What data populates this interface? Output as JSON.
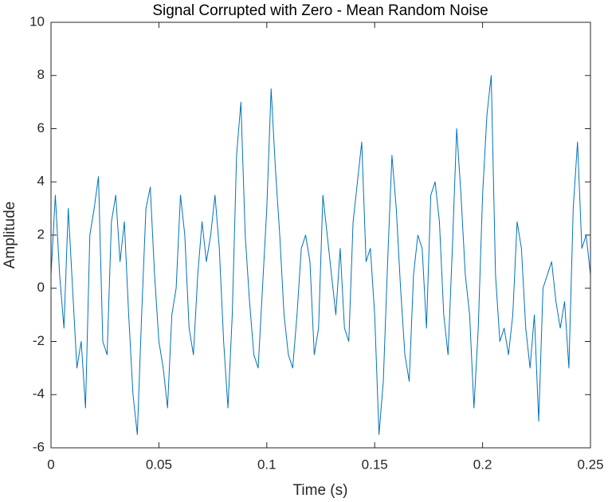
{
  "chart_data": {
    "type": "line",
    "title": "Signal Corrupted with Zero - Mean Random Noise",
    "x_label": "Time (s)",
    "y_label": "Amplitude",
    "xlim": [
      0,
      0.25
    ],
    "xticks": [
      0,
      0.05,
      0.1,
      0.15,
      0.2,
      0.25
    ],
    "ylim": [
      -6,
      10
    ],
    "yticks": [
      -6,
      -4,
      -2,
      0,
      2,
      4,
      6,
      8,
      10
    ],
    "grid": false,
    "x": [
      0,
      0.002,
      0.004,
      0.006,
      0.008,
      0.01,
      0.012,
      0.014,
      0.016,
      0.018,
      0.02,
      0.022,
      0.024,
      0.026,
      0.028,
      0.03,
      0.032,
      0.034,
      0.036,
      0.038,
      0.04,
      0.042,
      0.044,
      0.046,
      0.048,
      0.05,
      0.052,
      0.054,
      0.056,
      0.058,
      0.06,
      0.062,
      0.064,
      0.066,
      0.068,
      0.07,
      0.072,
      0.074,
      0.076,
      0.078,
      0.08,
      0.082,
      0.084,
      0.086,
      0.088,
      0.09,
      0.092,
      0.094,
      0.096,
      0.098,
      0.1,
      0.102,
      0.104,
      0.106,
      0.108,
      0.11,
      0.112,
      0.114,
      0.116,
      0.118,
      0.12,
      0.122,
      0.124,
      0.126,
      0.128,
      0.13,
      0.132,
      0.134,
      0.136,
      0.138,
      0.14,
      0.142,
      0.144,
      0.146,
      0.148,
      0.15,
      0.152,
      0.154,
      0.156,
      0.158,
      0.16,
      0.162,
      0.164,
      0.166,
      0.168,
      0.17,
      0.172,
      0.174,
      0.176,
      0.178,
      0.18,
      0.182,
      0.184,
      0.186,
      0.188,
      0.19,
      0.192,
      0.194,
      0.196,
      0.198,
      0.2,
      0.202,
      0.204,
      0.206,
      0.208,
      0.21,
      0.212,
      0.214,
      0.216,
      0.218,
      0.22,
      0.222,
      0.224,
      0.226,
      0.228,
      0.23,
      0.232,
      0.234,
      0.236,
      0.238,
      0.24,
      0.242,
      0.244,
      0.246,
      0.248,
      0.25
    ],
    "series": [
      {
        "color": "#0072bd",
        "values": [
          0.5,
          3.5,
          0.5,
          -1.5,
          3,
          0,
          -3,
          -2,
          -4.5,
          2,
          3,
          4.2,
          -2,
          -2.5,
          2.5,
          3.5,
          1,
          2.5,
          -1,
          -4,
          -5.5,
          -1,
          3,
          3.8,
          0.5,
          -2,
          -3,
          -4.5,
          -1,
          0,
          3.5,
          2,
          -1.5,
          -2.5,
          0.5,
          2.5,
          1,
          2,
          3.5,
          1.5,
          -2,
          -4.5,
          -1,
          5,
          7,
          2,
          -0.5,
          -2.5,
          -3,
          0,
          3,
          7.5,
          4.5,
          2,
          -1,
          -2.5,
          -3,
          -1,
          1.5,
          2,
          1,
          -2.5,
          -1.5,
          3.5,
          2,
          0.5,
          -1,
          1.5,
          -1.5,
          -2,
          2.5,
          4,
          5.5,
          1,
          1.5,
          -1,
          -5.5,
          -3.5,
          1,
          5,
          3,
          0,
          -2.5,
          -3.5,
          0.5,
          2,
          1.5,
          -1.5,
          3.5,
          4,
          2.5,
          -1,
          -2.5,
          1.5,
          6,
          3.5,
          0.5,
          -1,
          -4.5,
          -1.5,
          3.5,
          6.5,
          8,
          0.5,
          -2,
          -1.5,
          -2.5,
          -1,
          2.5,
          1.5,
          -1.5,
          -3,
          -1,
          -5,
          0,
          0.5,
          1,
          -0.5,
          -1.5,
          -0.5,
          -3,
          3,
          5.5,
          1.5,
          2,
          0.5
        ]
      }
    ]
  }
}
